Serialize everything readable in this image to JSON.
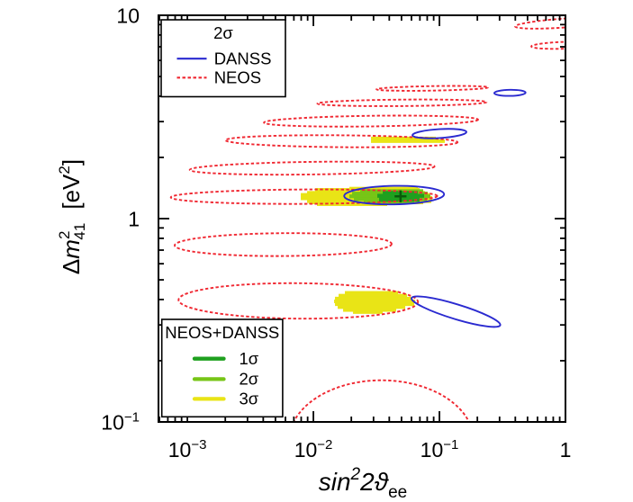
{
  "figure": {
    "background": "#ffffff"
  },
  "colors": {
    "frame": "#000000",
    "neos": "#f02832",
    "danss": "#2a2ad0",
    "sigma1": "#1fa01f",
    "sigma2": "#77c517",
    "sigma3": "#e9e416",
    "best_fit_cross": "#0a5a0a",
    "legend_box_fill": "#ffffff"
  },
  "axes": {
    "x": {
      "scale": "log",
      "min": 0.00059,
      "max": 1.0,
      "title_parts": {
        "prefix": "sin",
        "sup": "2",
        "mid": "2ϑ",
        "sub": "ee"
      },
      "ticks": [
        {
          "v": 0.001,
          "base": "10",
          "exp": "−3"
        },
        {
          "v": 0.01,
          "base": "10",
          "exp": "−2"
        },
        {
          "v": 0.1,
          "base": "10",
          "exp": "−1"
        },
        {
          "v": 1,
          "base": "1",
          "exp": ""
        }
      ]
    },
    "y": {
      "scale": "log",
      "min": 0.1,
      "max": 10.0,
      "title_parts": {
        "delta": "Δ",
        "symbol": "m",
        "sup": "2",
        "sub": "41",
        "unit_open": "[eV",
        "unit_sup": "2",
        "unit_close": "]"
      },
      "ticks": [
        {
          "v": 10,
          "base": "10",
          "exp": ""
        },
        {
          "v": 1,
          "base": "1",
          "exp": ""
        },
        {
          "v": 0.1,
          "base": "10",
          "exp": "−1"
        }
      ]
    }
  },
  "legend_top": {
    "title": "2σ",
    "entries": [
      {
        "label": "DANSS",
        "line": "solid",
        "color": "#2a2ad0"
      },
      {
        "label": "NEOS",
        "line": "dashed",
        "color": "#f02832"
      }
    ]
  },
  "legend_bottom": {
    "title": "NEOS+DANSS",
    "entries": [
      {
        "label": "1σ",
        "color": "#1fa01f"
      },
      {
        "label": "2σ",
        "color": "#77c517"
      },
      {
        "label": "3σ",
        "color": "#e9e416"
      }
    ]
  },
  "chart_data": {
    "type": "contour",
    "title": "",
    "xlabel": "sin^2(2theta_ee)",
    "ylabel": "Delta m^2_41 [eV^2]",
    "xlim": [
      0.00059,
      1.0
    ],
    "ylim": [
      0.1,
      10.0
    ],
    "x_scale": "log",
    "y_scale": "log",
    "grid": false,
    "best_fit": {
      "x": 0.04914,
      "m": 1.287
    },
    "neos_2sigma_contours": [
      {
        "x": 1.0,
        "m": 9.17,
        "rx": 0.4,
        "ry": 0.0221,
        "rot": -4
      },
      {
        "x": 1.0,
        "m": 7.123,
        "rx": 0.2714,
        "ry": 0.0168,
        "rot": -2.0
      },
      {
        "x": 0.08767,
        "m": 4.372,
        "rx": 0.4429,
        "ry": 0.011,
        "rot": -1.0
      },
      {
        "x": 0.05045,
        "m": 3.711,
        "rx": 0.6714,
        "ry": 0.0159,
        "rot": -0.5
      },
      {
        "x": 0.02865,
        "m": 3.017,
        "rx": 0.85,
        "ry": 0.0261,
        "rot": -0.8
      },
      {
        "x": 0.01671,
        "m": 2.402,
        "rx": 0.9214,
        "ry": 0.0292,
        "rot": 0.5
      },
      {
        "x": 0.009772,
        "m": 1.771,
        "rx": 0.9714,
        "ry": 0.031,
        "rot": -0.8
      },
      {
        "x": 0.008428,
        "m": 1.282,
        "rx": 1.0571,
        "ry": 0.0354,
        "rot": -0.3
      },
      {
        "x": 0.005754,
        "m": 0.7449,
        "rx": 0.8607,
        "ry": 0.0562,
        "rot": -0.4
      },
      {
        "x": 0.007586,
        "m": 0.3937,
        "rx": 0.95,
        "ry": 0.0872,
        "rot": 0.5
      },
      {
        "x": 0.03462,
        "m": 0.08074,
        "rx": 0.7321,
        "ry": 0.2978,
        "rot": 0
      }
    ],
    "danss_2sigma_contours": [
      {
        "x": 0.3625,
        "m": 4.155,
        "rx": 0.1243,
        "ry": 0.015,
        "rot": -1
      },
      {
        "x": 0.1,
        "m": 2.619,
        "rx": 0.2143,
        "ry": 0.0217,
        "rot": -3.5
      },
      {
        "x": 0.04372,
        "m": 1.305,
        "rx": 0.3964,
        "ry": 0.0456,
        "rot": -1
      },
      {
        "x": 0.1351,
        "m": 0.3487,
        "rx": 0.3679,
        "ry": 0.0363,
        "rot": 17
      }
    ],
    "combined_regions": {
      "sigma3": [
        [
          1.428,
          1.408,
          0.01931,
          0.06739
        ],
        [
          1.408,
          1.362,
          0.01033,
          0.06964
        ],
        [
          1.362,
          1.331,
          0.008913,
          0.07686
        ],
        [
          1.331,
          1.286,
          0.007943,
          0.08345
        ],
        [
          1.286,
          1.237,
          0.007943,
          0.08767
        ],
        [
          1.237,
          1.198,
          0.008913,
          0.08624
        ],
        [
          1.198,
          1.181,
          0.009211,
          0.07438
        ],
        [
          1.181,
          1.158,
          0.01068,
          0.03852
        ],
        [
          2.52,
          2.444,
          0.02865,
          0.09363
        ],
        [
          2.444,
          2.365,
          0.02865,
          0.1104
        ],
        [
          0.4386,
          0.4249,
          0.01778,
          0.04693
        ],
        [
          0.4249,
          0.4113,
          0.01585,
          0.05532
        ],
        [
          0.4113,
          0.3981,
          0.01484,
          0.06105
        ],
        [
          0.3981,
          0.3853,
          0.0146,
          0.06414
        ],
        [
          0.3853,
          0.373,
          0.01484,
          0.0631
        ],
        [
          0.373,
          0.361,
          0.01559,
          0.05353
        ],
        [
          0.361,
          0.3494,
          0.01721,
          0.04541
        ],
        [
          0.3494,
          0.3413,
          0.02062,
          0.03548
        ]
      ],
      "sigma2": [
        [
          1.39,
          1.351,
          0.02352,
          0.07438
        ],
        [
          1.351,
          1.31,
          0.02028,
          0.08075
        ],
        [
          1.31,
          1.264,
          0.01931,
          0.08483
        ],
        [
          1.264,
          1.226,
          0.02096,
          0.07943
        ],
        [
          1.226,
          1.189,
          0.02512,
          0.0631
        ]
      ],
      "sigma1": [
        [
          1.363,
          1.319,
          0.03548,
          0.06739
        ],
        [
          1.319,
          1.271,
          0.03215,
          0.07561
        ],
        [
          1.271,
          1.214,
          0.03322,
          0.06964
        ]
      ]
    }
  }
}
